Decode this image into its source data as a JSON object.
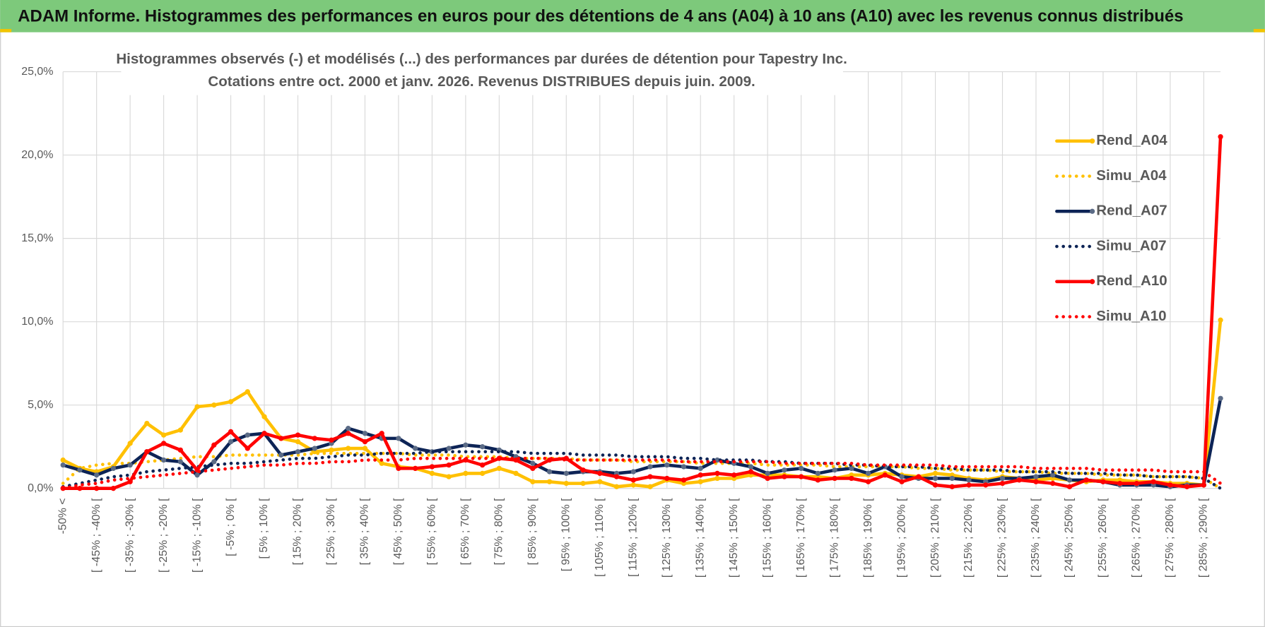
{
  "header": "ADAM Informe. Histogrammes des performances en euros pour des détentions de 4 ans (A04) à 10 ans (A10) avec les revenus connus distribués",
  "chart_data": {
    "type": "line",
    "title": [
      "Histogrammes observés (-) et modélisés (...) des performances par durées de détention pour Tapestry Inc.",
      "Cotations entre oct. 2000 et janv. 2026.  Revenus DISTRIBUES depuis juin. 2009."
    ],
    "categories": [
      "-50% <",
      null,
      "[ -45% ; -40% [",
      null,
      "[ -35% ; -30% [",
      null,
      "[ -25% ; -20% [",
      null,
      "[ -15% ; -10% [",
      null,
      "[ -5% ; 0% [",
      null,
      "[ 5% ; 10% [",
      null,
      "[ 15% ; 20% [",
      null,
      "[ 25% ; 30% [",
      null,
      "[ 35% ; 40% [",
      null,
      "[ 45% ; 50% [",
      null,
      "[ 55% ; 60% [",
      null,
      "[ 65% ; 70% [",
      null,
      "[ 75% ; 80% [",
      null,
      "[ 85% ; 90% [",
      null,
      "[ 95% ; 100% [",
      null,
      "[ 105% ; 110% [",
      null,
      "[ 115% ; 120% [",
      null,
      "[ 125% ; 130% [",
      null,
      "[ 135% ; 140% [",
      null,
      "[ 145% ; 150% [",
      null,
      "[ 155% ; 160% [",
      null,
      "[ 165% ; 170% [",
      null,
      "[ 175% ; 180% [",
      null,
      "[ 185% ; 190% [",
      null,
      "[ 195% ; 200% [",
      null,
      "[ 205% ; 210% [",
      null,
      "[ 215% ; 220% [",
      null,
      "[ 225% ; 230% [",
      null,
      "[ 235% ; 240% [",
      null,
      "[ 245% ; 250% [",
      null,
      "[ 255% ; 260% [",
      null,
      "[ 265% ; 270% [",
      null,
      "[ 275% ; 280% [",
      null,
      "[ 285% ; 290% [",
      null
    ],
    "series": [
      {
        "name": "Rend_A04",
        "color": "#FFC000",
        "marker": "#FFC000",
        "line_style": "solid",
        "values": [
          1.7,
          1.2,
          1.0,
          1.3,
          2.7,
          3.9,
          3.2,
          3.5,
          4.9,
          5.0,
          5.2,
          5.8,
          4.3,
          3.0,
          2.8,
          2.2,
          2.3,
          2.4,
          2.4,
          1.5,
          1.3,
          1.2,
          0.9,
          0.7,
          0.9,
          0.9,
          1.2,
          0.9,
          0.4,
          0.4,
          0.3,
          0.3,
          0.4,
          0.1,
          0.2,
          0.1,
          0.5,
          0.3,
          0.4,
          0.6,
          0.6,
          0.8,
          0.8,
          0.8,
          0.7,
          0.7,
          0.6,
          0.8,
          0.8,
          0.9,
          0.8,
          0.7,
          0.9,
          0.8,
          0.6,
          0.5,
          0.7,
          0.6,
          0.5,
          0.6,
          0.5,
          0.4,
          0.5,
          0.5,
          0.4,
          0.4,
          0.3,
          0.3,
          0.2,
          10.1
        ]
      },
      {
        "name": "Simu_A04",
        "color": "#FFC000",
        "line_style": "dotted",
        "values": [
          0.3,
          1.2,
          1.4,
          1.5,
          1.5,
          1.6,
          1.7,
          1.8,
          1.9,
          1.9,
          2.0,
          2.0,
          2.0,
          2.0,
          2.0,
          2.1,
          2.1,
          2.1,
          2.1,
          2.1,
          2.1,
          2.0,
          2.0,
          2.0,
          1.9,
          1.9,
          1.9,
          1.8,
          1.8,
          1.8,
          1.8,
          1.7,
          1.7,
          1.7,
          1.6,
          1.6,
          1.6,
          1.6,
          1.5,
          1.5,
          1.5,
          1.5,
          1.4,
          1.4,
          1.4,
          1.4,
          1.3,
          1.3,
          1.3,
          1.3,
          1.3,
          1.2,
          1.2,
          1.1,
          1.1,
          1.1,
          1.0,
          1.0,
          1.0,
          0.9,
          0.9,
          0.9,
          0.8,
          0.8,
          0.8,
          0.7,
          0.7,
          0.7,
          0.6,
          0.0
        ]
      },
      {
        "name": "Rend_A07",
        "color": "#0D2456",
        "marker": "#5B6B86",
        "line_style": "solid",
        "values": [
          1.4,
          1.1,
          0.8,
          1.2,
          1.4,
          2.2,
          1.7,
          1.6,
          0.8,
          1.6,
          2.8,
          3.2,
          3.3,
          2.0,
          2.2,
          2.4,
          2.7,
          3.6,
          3.3,
          3.0,
          3.0,
          2.4,
          2.2,
          2.4,
          2.6,
          2.5,
          2.3,
          1.9,
          1.5,
          1.0,
          0.9,
          1.0,
          1.0,
          0.9,
          1.0,
          1.3,
          1.4,
          1.3,
          1.2,
          1.7,
          1.5,
          1.3,
          0.9,
          1.1,
          1.2,
          0.9,
          1.1,
          1.2,
          0.9,
          1.3,
          0.7,
          0.6,
          0.6,
          0.6,
          0.5,
          0.4,
          0.6,
          0.6,
          0.7,
          0.8,
          0.5,
          0.5,
          0.4,
          0.2,
          0.2,
          0.2,
          0.1,
          0.2,
          0.2,
          5.4
        ]
      },
      {
        "name": "Simu_A07",
        "color": "#0D2456",
        "line_style": "dotted",
        "values": [
          0.1,
          0.3,
          0.5,
          0.7,
          0.8,
          1.0,
          1.1,
          1.2,
          1.3,
          1.4,
          1.5,
          1.5,
          1.6,
          1.7,
          1.8,
          1.8,
          1.9,
          2.0,
          2.0,
          2.1,
          2.1,
          2.1,
          2.2,
          2.2,
          2.2,
          2.2,
          2.2,
          2.2,
          2.1,
          2.1,
          2.1,
          2.0,
          2.0,
          2.0,
          1.9,
          1.9,
          1.9,
          1.8,
          1.8,
          1.7,
          1.7,
          1.7,
          1.6,
          1.6,
          1.5,
          1.5,
          1.5,
          1.4,
          1.4,
          1.3,
          1.3,
          1.3,
          1.2,
          1.2,
          1.1,
          1.1,
          1.1,
          1.0,
          1.0,
          1.0,
          0.9,
          0.9,
          0.9,
          0.8,
          0.8,
          0.7,
          0.7,
          0.7,
          0.6,
          0.0
        ]
      },
      {
        "name": "Rend_A10",
        "color": "#FF0000",
        "marker": "#FF0000",
        "line_style": "solid",
        "values": [
          0.0,
          0.0,
          0.0,
          0.0,
          0.4,
          2.2,
          2.7,
          2.3,
          1.1,
          2.6,
          3.4,
          2.4,
          3.3,
          3.0,
          3.2,
          3.0,
          2.9,
          3.3,
          2.8,
          3.3,
          1.2,
          1.2,
          1.3,
          1.4,
          1.7,
          1.4,
          1.8,
          1.7,
          1.2,
          1.7,
          1.8,
          1.1,
          0.9,
          0.7,
          0.5,
          0.7,
          0.6,
          0.5,
          0.8,
          0.9,
          0.8,
          1.0,
          0.6,
          0.7,
          0.7,
          0.5,
          0.6,
          0.6,
          0.4,
          0.8,
          0.4,
          0.7,
          0.2,
          0.1,
          0.2,
          0.2,
          0.3,
          0.5,
          0.4,
          0.3,
          0.1,
          0.5,
          0.4,
          0.3,
          0.3,
          0.4,
          0.2,
          0.1,
          0.2,
          21.1
        ]
      },
      {
        "name": "Simu_A10",
        "color": "#FF0000",
        "line_style": "dotted",
        "values": [
          0.0,
          0.2,
          0.3,
          0.5,
          0.6,
          0.7,
          0.8,
          0.9,
          1.0,
          1.1,
          1.2,
          1.3,
          1.4,
          1.4,
          1.5,
          1.5,
          1.6,
          1.6,
          1.7,
          1.7,
          1.7,
          1.8,
          1.8,
          1.8,
          1.8,
          1.8,
          1.8,
          1.8,
          1.8,
          1.8,
          1.7,
          1.7,
          1.7,
          1.7,
          1.7,
          1.7,
          1.7,
          1.6,
          1.6,
          1.6,
          1.6,
          1.6,
          1.6,
          1.5,
          1.5,
          1.5,
          1.5,
          1.5,
          1.4,
          1.4,
          1.4,
          1.4,
          1.4,
          1.3,
          1.3,
          1.3,
          1.3,
          1.3,
          1.2,
          1.2,
          1.2,
          1.2,
          1.1,
          1.1,
          1.1,
          1.1,
          1.0,
          1.0,
          1.0,
          0.3
        ]
      }
    ],
    "ylim": [
      0,
      25
    ],
    "yticks": [
      {
        "value": 0,
        "label": "0,0%"
      },
      {
        "value": 5,
        "label": "5,0%"
      },
      {
        "value": 10,
        "label": "10,0%"
      },
      {
        "value": 15,
        "label": "15,0%"
      },
      {
        "value": 20,
        "label": "20,0%"
      },
      {
        "value": 25,
        "label": "25,0%"
      }
    ],
    "grid": true,
    "legend": "right"
  }
}
